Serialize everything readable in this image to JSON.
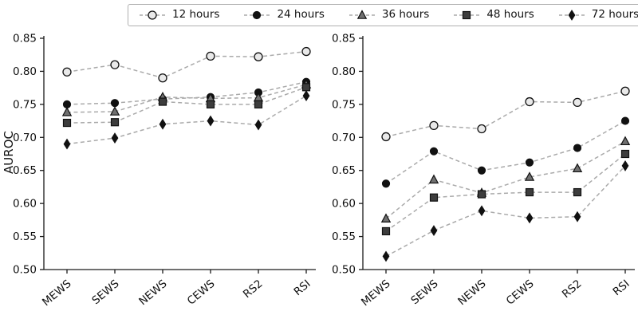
{
  "figure": {
    "ylabel": "AUROC"
  },
  "legend": {
    "position": "top-center-outside",
    "items": [
      {
        "label": "12 hours",
        "marker": "circle-open"
      },
      {
        "label": "24 hours",
        "marker": "circle-filled"
      },
      {
        "label": "36 hours",
        "marker": "triangle-filled"
      },
      {
        "label": "48 hours",
        "marker": "square-filled"
      },
      {
        "label": "72 hours",
        "marker": "diamond-thin"
      }
    ]
  },
  "colors": {
    "line": "#aaaaaa",
    "axis": "#1a1a1a",
    "text": "#111111",
    "marker_edge": "#111111",
    "circle_open_fill": "#e9e9e9",
    "circle_filled_fill": "#111111",
    "triangle_fill": "#707070",
    "square_fill": "#3d3d3d",
    "diamond_fill": "#111111"
  },
  "chart_data": [
    {
      "type": "line",
      "title": "",
      "xlabel": "",
      "ylabel": "AUROC",
      "grid": false,
      "line_style": "dashed",
      "categories": [
        "MEWS",
        "SEWS",
        "NEWS",
        "CEWS",
        "RS2",
        "RSI"
      ],
      "ylim": [
        0.5,
        0.85
      ],
      "yticks": [
        0.5,
        0.55,
        0.6,
        0.65,
        0.7,
        0.75,
        0.8,
        0.85
      ],
      "series": [
        {
          "name": "12 hours",
          "marker": "circle-open",
          "values": [
            0.799,
            0.81,
            0.79,
            0.823,
            0.822,
            0.83
          ]
        },
        {
          "name": "24 hours",
          "marker": "circle-filled",
          "values": [
            0.75,
            0.752,
            0.758,
            0.761,
            0.768,
            0.784
          ]
        },
        {
          "name": "36 hours",
          "marker": "triangle-filled",
          "values": [
            0.738,
            0.739,
            0.761,
            0.759,
            0.76,
            0.78
          ]
        },
        {
          "name": "48 hours",
          "marker": "square-filled",
          "values": [
            0.722,
            0.723,
            0.754,
            0.75,
            0.75,
            0.776
          ]
        },
        {
          "name": "72 hours",
          "marker": "diamond-thin",
          "values": [
            0.69,
            0.699,
            0.72,
            0.725,
            0.719,
            0.763
          ]
        }
      ]
    },
    {
      "type": "line",
      "title": "",
      "xlabel": "",
      "ylabel": "",
      "grid": false,
      "line_style": "dashed",
      "categories": [
        "MEWS",
        "SEWS",
        "NEWS",
        "CEWS",
        "RS2",
        "RSI"
      ],
      "ylim": [
        0.5,
        0.85
      ],
      "yticks": [
        0.5,
        0.55,
        0.6,
        0.65,
        0.7,
        0.75,
        0.8,
        0.85
      ],
      "series": [
        {
          "name": "12 hours",
          "marker": "circle-open",
          "values": [
            0.701,
            0.718,
            0.713,
            0.754,
            0.753,
            0.77
          ]
        },
        {
          "name": "24 hours",
          "marker": "circle-filled",
          "values": [
            0.63,
            0.679,
            0.65,
            0.662,
            0.684,
            0.725
          ]
        },
        {
          "name": "36 hours",
          "marker": "triangle-filled",
          "values": [
            0.577,
            0.636,
            0.616,
            0.64,
            0.653,
            0.694
          ]
        },
        {
          "name": "48 hours",
          "marker": "square-filled",
          "values": [
            0.558,
            0.609,
            0.614,
            0.617,
            0.617,
            0.675
          ]
        },
        {
          "name": "72 hours",
          "marker": "diamond-thin",
          "values": [
            0.52,
            0.559,
            0.589,
            0.578,
            0.58,
            0.657
          ]
        }
      ]
    }
  ]
}
